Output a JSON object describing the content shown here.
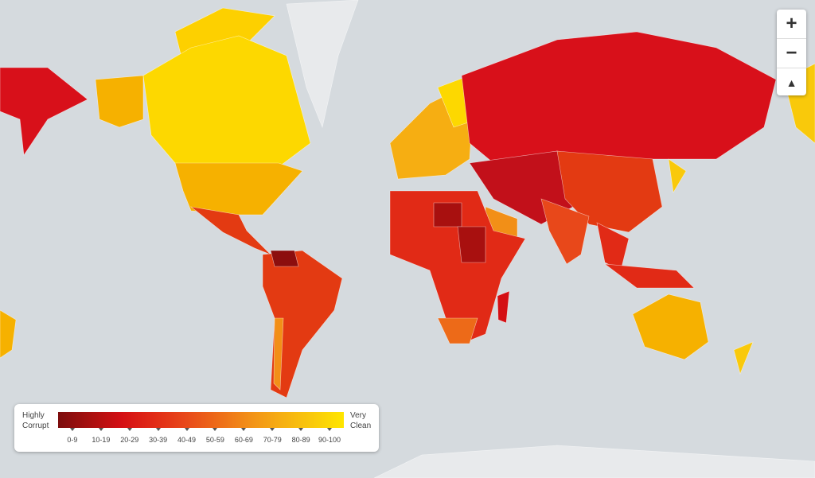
{
  "legend": {
    "low_label": "Highly Corrupt",
    "high_label": "Very Clean",
    "bins": [
      {
        "label": "0-9",
        "color": "#7c0d0d"
      },
      {
        "label": "10-19",
        "color": "#a8100f"
      },
      {
        "label": "20-29",
        "color": "#d40f14"
      },
      {
        "label": "30-39",
        "color": "#e12a16"
      },
      {
        "label": "40-49",
        "color": "#e8481a"
      },
      {
        "label": "50-59",
        "color": "#ed6a18"
      },
      {
        "label": "60-69",
        "color": "#f28f17"
      },
      {
        "label": "70-79",
        "color": "#f6ae12"
      },
      {
        "label": "80-89",
        "color": "#f9c90b"
      },
      {
        "label": "90-100",
        "color": "#ffe600"
      }
    ]
  },
  "controls": {
    "zoom_in": "+",
    "zoom_out": "−"
  }
}
